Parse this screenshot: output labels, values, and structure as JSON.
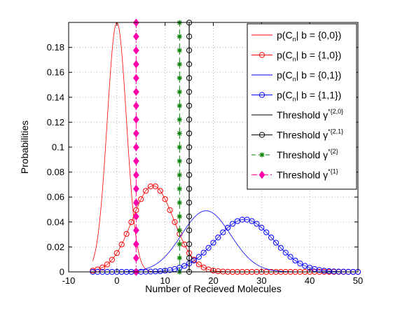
{
  "chart_data": {
    "type": "line",
    "title": "",
    "xlabel": "Number of Recieved Molecules",
    "ylabel": "Probabilities",
    "xlim": [
      -10,
      50
    ],
    "ylim": [
      0,
      0.2
    ],
    "grid": true,
    "legend_position": "top-right",
    "xticks": [
      -10,
      0,
      10,
      20,
      30,
      40,
      50
    ],
    "yticks": [
      0,
      0.02,
      0.04,
      0.06,
      0.08,
      0.1,
      0.12,
      0.14,
      0.16,
      0.18
    ],
    "series": [
      {
        "name": "p(C_n | b = {0,0})",
        "legend_main": "p(C",
        "legend_sub": "n",
        "legend_tail": "| b = {0,0})",
        "color": "#ff0000",
        "style": "solid",
        "marker": "none",
        "distribution": {
          "kind": "gaussian",
          "peak_x": 0,
          "peak_y": 0.2,
          "sigma": 2.0
        },
        "x_range": [
          -5,
          50
        ]
      },
      {
        "name": "p(C_n | b = {1,0})",
        "legend_main": "p(C",
        "legend_sub": "n",
        "legend_tail": "| b = {1,0})",
        "color": "#ff0000",
        "style": "solid",
        "marker": "circle",
        "distribution": {
          "kind": "gaussian",
          "peak_x": 7.5,
          "peak_y": 0.069,
          "sigma": 4.3
        },
        "x_range": [
          -5,
          50
        ]
      },
      {
        "name": "p(C_n | b = {0,1})",
        "legend_main": "p(C",
        "legend_sub": "n",
        "legend_tail": "| b = {0,1})",
        "color": "#0000ff",
        "style": "solid",
        "marker": "none",
        "distribution": {
          "kind": "gaussian",
          "peak_x": 18.5,
          "peak_y": 0.049,
          "sigma": 5.1
        },
        "x_range": [
          -5,
          50
        ]
      },
      {
        "name": "p(C_n | b = {1,1})",
        "legend_main": "p(C",
        "legend_sub": "n",
        "legend_tail": "| b = {1,1})",
        "color": "#0000ff",
        "style": "solid",
        "marker": "circle",
        "distribution": {
          "kind": "gaussian",
          "peak_x": 26.5,
          "peak_y": 0.042,
          "sigma": 6.0
        },
        "x_range": [
          -5,
          50
        ]
      }
    ],
    "thresholds": [
      {
        "name": "Threshold γ^{*{2,0}}",
        "legend_main": "Threshold γ",
        "legend_sup": "*{2,0}",
        "x": 15,
        "color": "#000000",
        "style": "solid",
        "marker": "none"
      },
      {
        "name": "Threshold γ^{*{2,1}}",
        "legend_main": "Threshold γ",
        "legend_sup": "*{2,1}",
        "x": 15,
        "color": "#000000",
        "style": "solid",
        "marker": "circle"
      },
      {
        "name": "Threshold γ^{*{2}}",
        "legend_main": "Threshold γ",
        "legend_sup": "*{2}",
        "x": 13,
        "color": "#007f00",
        "style": "dashed",
        "marker": "star"
      },
      {
        "name": "Threshold γ^{*{1}}",
        "legend_main": "Threshold γ",
        "legend_sup": "*{1}",
        "x": 4,
        "color": "#ff00aa",
        "style": "dashdot",
        "marker": "diamond"
      }
    ]
  }
}
